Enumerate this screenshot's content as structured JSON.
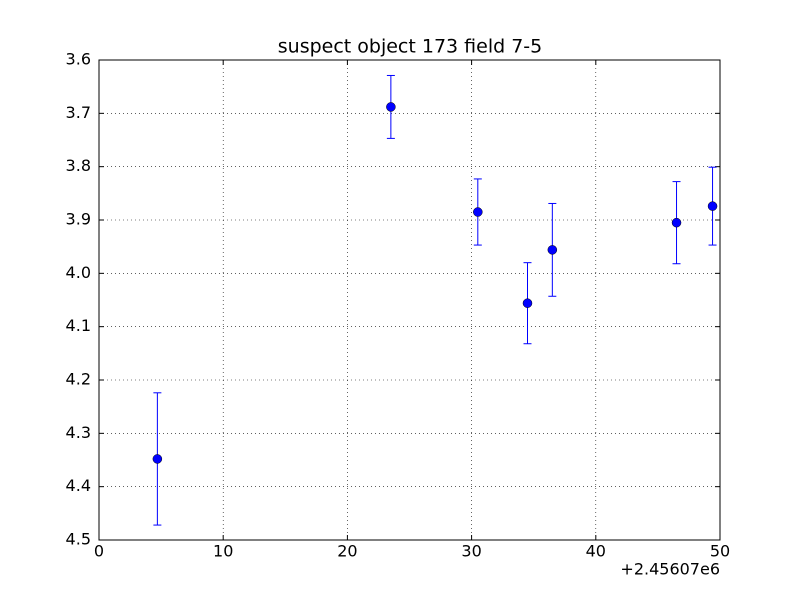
{
  "chart_data": {
    "type": "errorbar",
    "title": "suspect object 173 field 7-5",
    "x": [
      4.7,
      23.5,
      30.5,
      34.5,
      36.5,
      46.5,
      49.4
    ],
    "values": [
      4.348,
      3.688,
      3.885,
      4.056,
      3.956,
      3.905,
      3.874
    ],
    "errors": [
      0.124,
      0.059,
      0.062,
      0.076,
      0.087,
      0.077,
      0.073
    ],
    "color": "#0000ff",
    "xlim": [
      0,
      50
    ],
    "xticks": [
      0,
      10,
      20,
      30,
      40,
      50
    ],
    "x_offset_label": "+2.45607e6",
    "ylim": [
      4.5,
      3.6
    ],
    "yticks": [
      3.6,
      3.7,
      3.8,
      3.9,
      {
        "value": 4,
        "label": "4.0"
      },
      4.1,
      4.2,
      4.3,
      4.4,
      4.5
    ],
    "grid": true
  }
}
